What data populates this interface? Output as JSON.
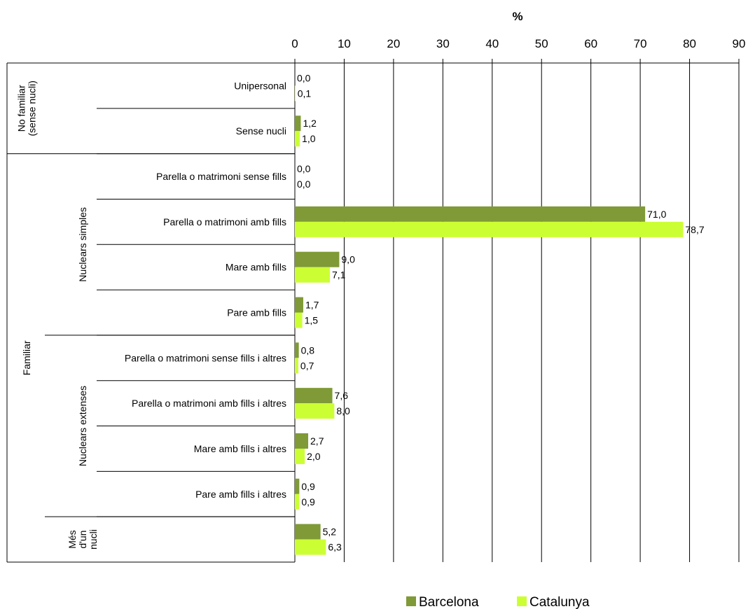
{
  "chart_data": {
    "type": "bar",
    "orientation": "horizontal",
    "xlabel": "%",
    "xlim": [
      0,
      90
    ],
    "x_ticks": [
      "0",
      "10",
      "20",
      "30",
      "40",
      "50",
      "60",
      "70",
      "80",
      "90"
    ],
    "grid": "vertical",
    "legend_position": "bottom",
    "categories": [
      "Unipersonal",
      "Sense nucli",
      "Parella o matrimoni sense fills",
      "Parella o matrimoni amb fills",
      "Mare amb fills",
      "Pare amb fills",
      "Parella o matrimoni sense fills i altres",
      "Parella o matrimoni amb fills i altres",
      "Mare amb fills i altres",
      "Pare amb fills i altres",
      ""
    ],
    "groups": [
      {
        "label": "No familiar\n(sense nucli)",
        "level": 1,
        "start": 0,
        "end": 1
      },
      {
        "label": "Familiar",
        "level": 1,
        "start": 2,
        "end": 10
      },
      {
        "label": "Nuclears simples",
        "level": 2,
        "start": 2,
        "end": 5
      },
      {
        "label": "Nuclears extenses",
        "level": 2,
        "start": 6,
        "end": 9
      },
      {
        "label": "Més\nd'un\nnucli",
        "level": 2,
        "start": 10,
        "end": 10
      }
    ],
    "series": [
      {
        "name": "Barcelona",
        "color": "#7f9a36",
        "values": [
          0.0,
          1.2,
          0.0,
          71.0,
          9.0,
          1.7,
          0.8,
          7.6,
          2.7,
          0.9,
          5.2
        ],
        "labels": [
          "0,0",
          "1,2",
          "0,0",
          "71,0",
          "9,0",
          "1,7",
          "0,8",
          "7,6",
          "2,7",
          "0,9",
          "5,2"
        ]
      },
      {
        "name": "Catalunya",
        "color": "#ccff33",
        "values": [
          0.1,
          1.0,
          0.0,
          78.7,
          7.1,
          1.5,
          0.7,
          8.0,
          2.0,
          0.9,
          6.3
        ],
        "labels": [
          "0,1",
          "1,0",
          "0,0",
          "78,7",
          "7,1",
          "1,5",
          "0,7",
          "8,0",
          "2,0",
          "0,9",
          "6,3"
        ]
      }
    ]
  }
}
